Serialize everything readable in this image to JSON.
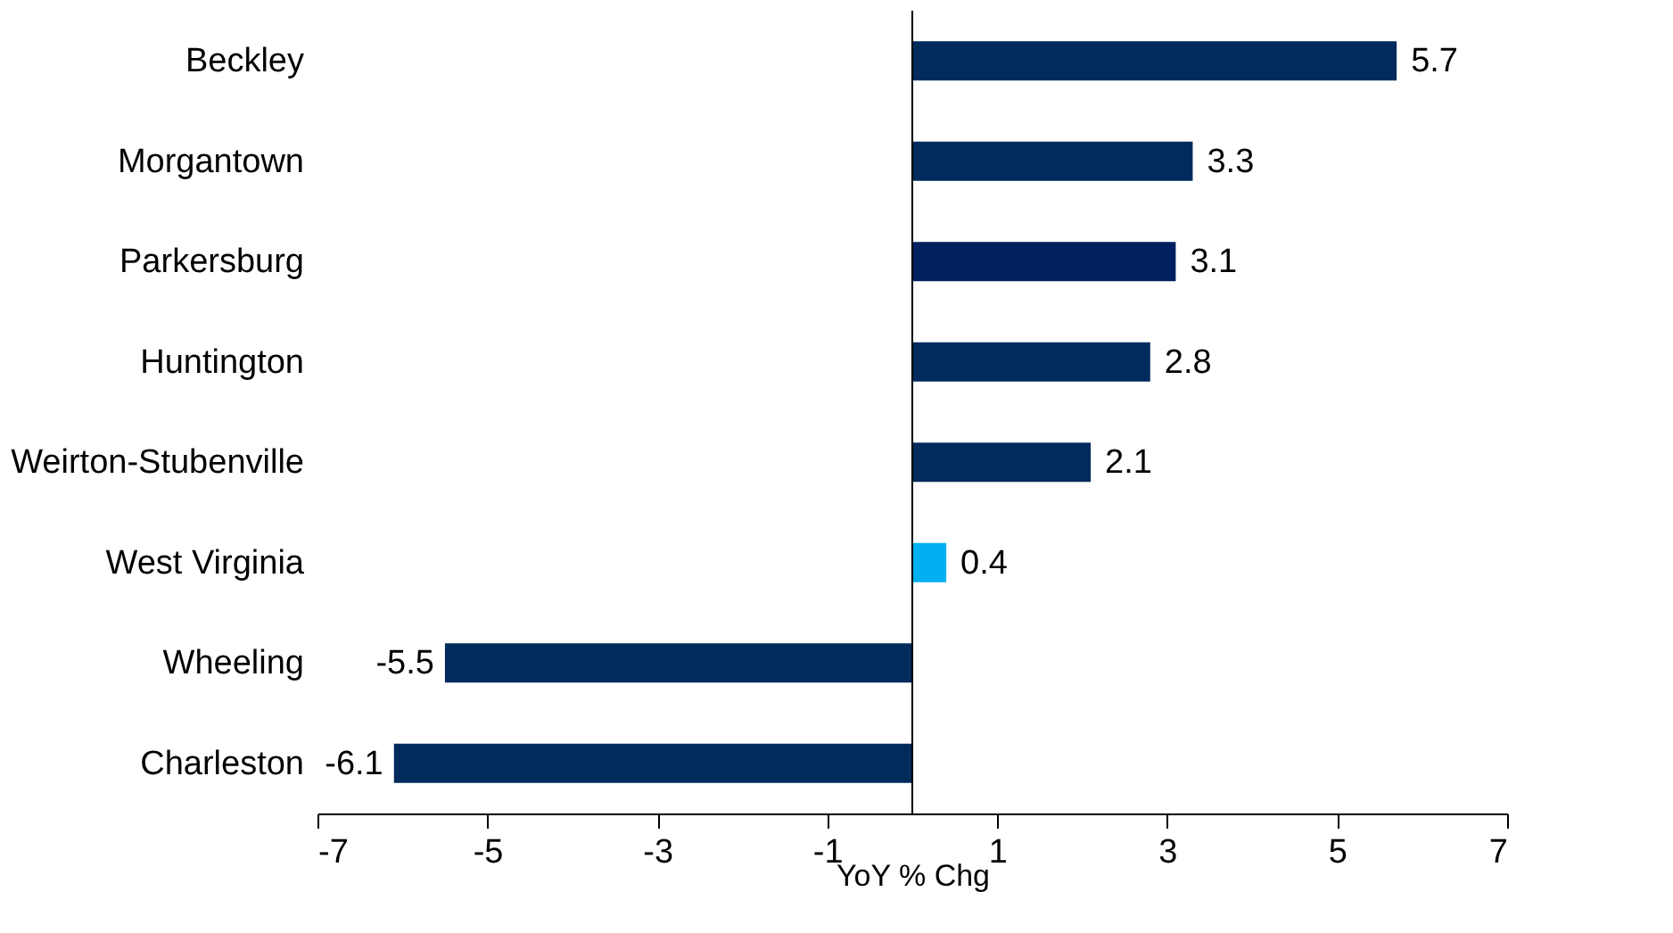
{
  "chart_data": {
    "type": "bar",
    "orientation": "horizontal",
    "categories": [
      "Beckley",
      "Morgantown",
      "Parkersburg",
      "Huntington",
      "Weirton-Stubenville",
      "West Virginia",
      "Wheeling",
      "Charleston"
    ],
    "values": [
      5.7,
      3.3,
      3.1,
      2.8,
      2.1,
      0.4,
      -5.5,
      -6.1
    ],
    "colors": [
      "#002b5c",
      "#002b5c",
      "#00205f",
      "#002b5c",
      "#002b5c",
      "#00b0f0",
      "#002b5c",
      "#002b5c"
    ],
    "xlim": [
      -7,
      7
    ],
    "xticks": [
      -7,
      -5,
      -3,
      -1,
      1,
      3,
      5,
      7
    ],
    "xlabel": "YoY % Chg",
    "data_labels": true,
    "grid": false
  }
}
